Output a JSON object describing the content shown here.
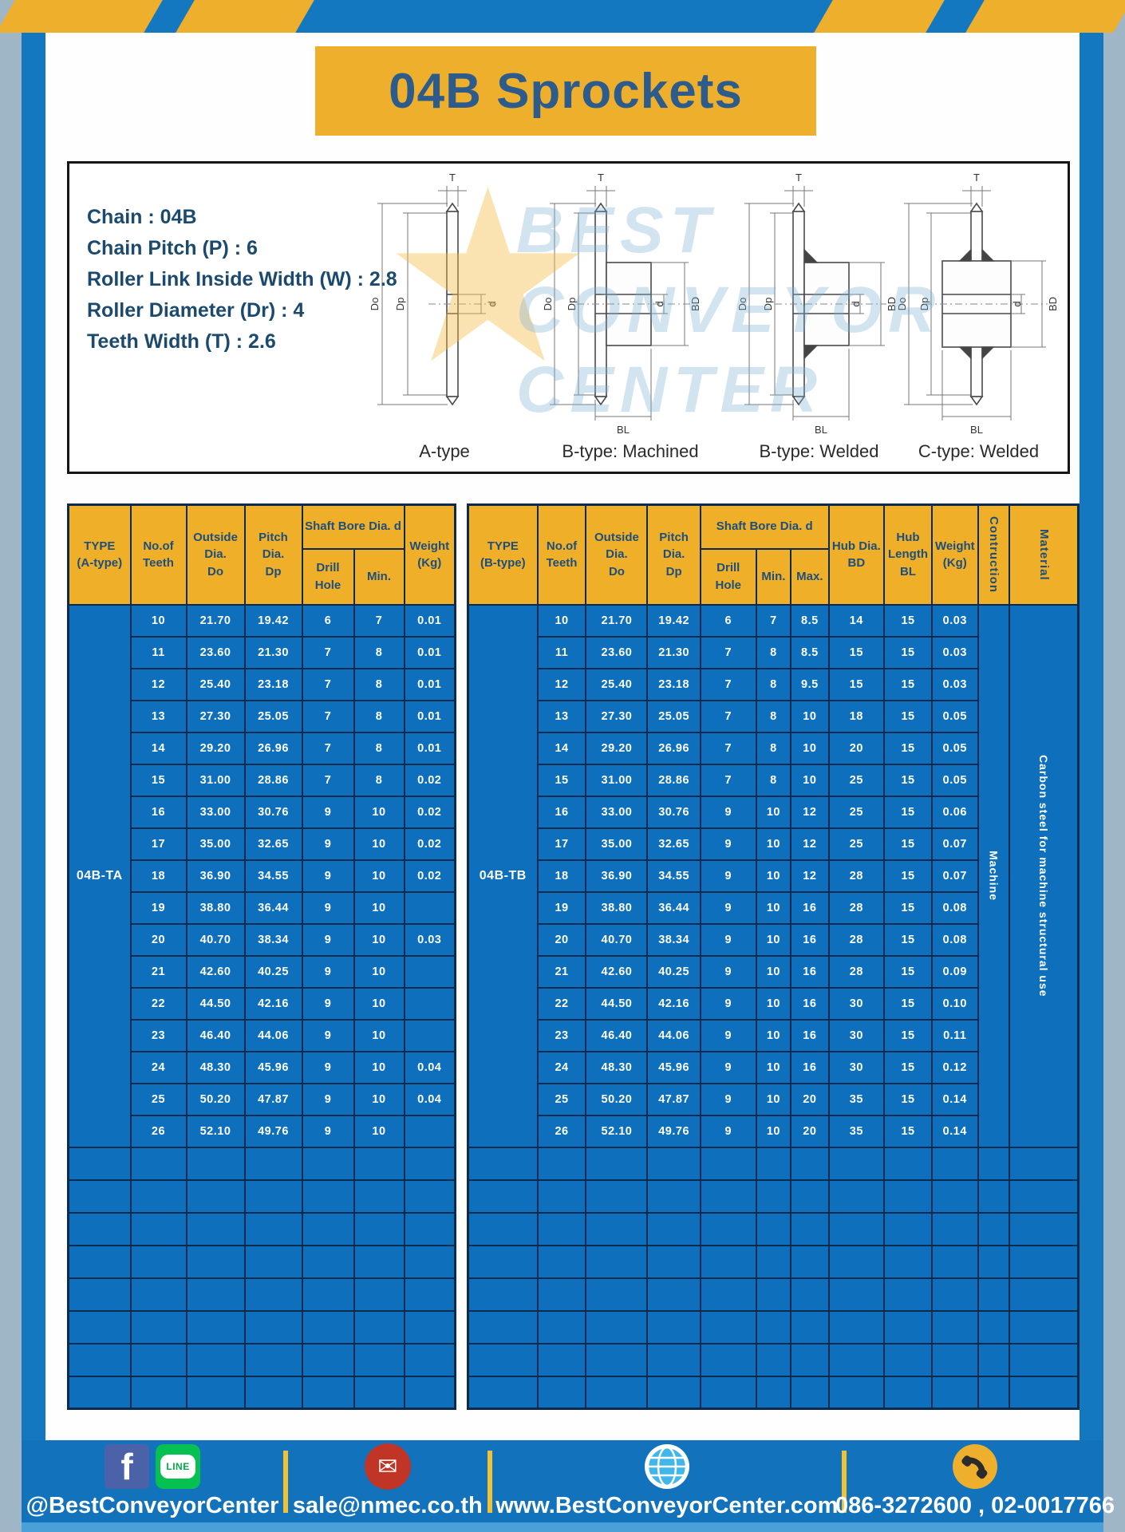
{
  "page": {
    "title": "04B Sprockets"
  },
  "specs": {
    "lines": [
      "Chain : 04B",
      "Chain Pitch (P) : 6",
      "Roller Link Inside Width (W) : 2.8",
      "Roller Diameter (Dr) : 4",
      "Teeth Width (T) : 2.6"
    ]
  },
  "drawings": {
    "labels": [
      "A-type",
      "B-type: Machined",
      "B-type: Welded",
      "C-type: Welded"
    ],
    "dims": {
      "t": "T",
      "do": "Do",
      "dp": "Dp",
      "d": "d",
      "bd": "BD",
      "bl": "BL"
    },
    "watermark": [
      "BEST",
      "CONVEYOR",
      "CENTER"
    ]
  },
  "tables": {
    "a": {
      "header": {
        "type": "TYPE\n(A-type)",
        "teeth": "No.of\nTeeth",
        "outside": "Outside\nDia.\nDo",
        "pitch": "Pitch Dia.\nDp",
        "shaft_bore": "Shaft Bore Dia. d",
        "drill": "Drill Hole",
        "min": "Min.",
        "weight": "Weight\n(Kg)"
      },
      "type_value": "04B-TA",
      "rows": [
        [
          "10",
          "21.70",
          "19.42",
          "6",
          "7",
          "0.01"
        ],
        [
          "11",
          "23.60",
          "21.30",
          "7",
          "8",
          "0.01"
        ],
        [
          "12",
          "25.40",
          "23.18",
          "7",
          "8",
          "0.01"
        ],
        [
          "13",
          "27.30",
          "25.05",
          "7",
          "8",
          "0.01"
        ],
        [
          "14",
          "29.20",
          "26.96",
          "7",
          "8",
          "0.01"
        ],
        [
          "15",
          "31.00",
          "28.86",
          "7",
          "8",
          "0.02"
        ],
        [
          "16",
          "33.00",
          "30.76",
          "9",
          "10",
          "0.02"
        ],
        [
          "17",
          "35.00",
          "32.65",
          "9",
          "10",
          "0.02"
        ],
        [
          "18",
          "36.90",
          "34.55",
          "9",
          "10",
          "0.02"
        ],
        [
          "19",
          "38.80",
          "36.44",
          "9",
          "10",
          ""
        ],
        [
          "20",
          "40.70",
          "38.34",
          "9",
          "10",
          "0.03"
        ],
        [
          "21",
          "42.60",
          "40.25",
          "9",
          "10",
          ""
        ],
        [
          "22",
          "44.50",
          "42.16",
          "9",
          "10",
          ""
        ],
        [
          "23",
          "46.40",
          "44.06",
          "9",
          "10",
          ""
        ],
        [
          "24",
          "48.30",
          "45.96",
          "9",
          "10",
          "0.04"
        ],
        [
          "25",
          "50.20",
          "47.87",
          "9",
          "10",
          "0.04"
        ],
        [
          "26",
          "52.10",
          "49.76",
          "9",
          "10",
          ""
        ]
      ],
      "empty_rows": 8
    },
    "b": {
      "header": {
        "type": "TYPE\n(B-type)",
        "teeth": "No.of\nTeeth",
        "outside": "Outside\nDia.\nDo",
        "pitch": "Pitch Dia.\nDp",
        "shaft_bore": "Shaft Bore Dia. d",
        "drill": "Drill Hole",
        "min": "Min.",
        "max": "Max.",
        "hub_dia": "Hub Dia.\nBD",
        "hub_len": "Hub\nLength\nBL",
        "weight": "Weight\n(Kg)",
        "contruction": "Contruction",
        "material": "Material"
      },
      "type_value": "04B-TB",
      "contruction_value": "Machine",
      "material_value": "Carbon steel for machine structural use",
      "rows": [
        [
          "10",
          "21.70",
          "19.42",
          "6",
          "7",
          "8.5",
          "14",
          "15",
          "0.03"
        ],
        [
          "11",
          "23.60",
          "21.30",
          "7",
          "8",
          "8.5",
          "15",
          "15",
          "0.03"
        ],
        [
          "12",
          "25.40",
          "23.18",
          "7",
          "8",
          "9.5",
          "15",
          "15",
          "0.03"
        ],
        [
          "13",
          "27.30",
          "25.05",
          "7",
          "8",
          "10",
          "18",
          "15",
          "0.05"
        ],
        [
          "14",
          "29.20",
          "26.96",
          "7",
          "8",
          "10",
          "20",
          "15",
          "0.05"
        ],
        [
          "15",
          "31.00",
          "28.86",
          "7",
          "8",
          "10",
          "25",
          "15",
          "0.05"
        ],
        [
          "16",
          "33.00",
          "30.76",
          "9",
          "10",
          "12",
          "25",
          "15",
          "0.06"
        ],
        [
          "17",
          "35.00",
          "32.65",
          "9",
          "10",
          "12",
          "25",
          "15",
          "0.07"
        ],
        [
          "18",
          "36.90",
          "34.55",
          "9",
          "10",
          "12",
          "28",
          "15",
          "0.07"
        ],
        [
          "19",
          "38.80",
          "36.44",
          "9",
          "10",
          "16",
          "28",
          "15",
          "0.08"
        ],
        [
          "20",
          "40.70",
          "38.34",
          "9",
          "10",
          "16",
          "28",
          "15",
          "0.08"
        ],
        [
          "21",
          "42.60",
          "40.25",
          "9",
          "10",
          "16",
          "28",
          "15",
          "0.09"
        ],
        [
          "22",
          "44.50",
          "42.16",
          "9",
          "10",
          "16",
          "30",
          "15",
          "0.10"
        ],
        [
          "23",
          "46.40",
          "44.06",
          "9",
          "10",
          "16",
          "30",
          "15",
          "0.11"
        ],
        [
          "24",
          "48.30",
          "45.96",
          "9",
          "10",
          "16",
          "30",
          "15",
          "0.12"
        ],
        [
          "25",
          "50.20",
          "47.87",
          "9",
          "10",
          "20",
          "35",
          "15",
          "0.14"
        ],
        [
          "26",
          "52.10",
          "49.76",
          "9",
          "10",
          "20",
          "35",
          "15",
          "0.14"
        ]
      ],
      "empty_rows": 8
    }
  },
  "footer": {
    "facebook_label": "f",
    "line_label": "LINE",
    "handle": "@BestConveyorCenter",
    "email": "sale@nmec.co.th",
    "website": "www.BestConveyorCenter.com",
    "phone": "086-3272600 , 02-0017766",
    "mail_glyph": "✉"
  },
  "colors": {
    "brand_blue": "#1478c0",
    "table_blue": "#0e70bc",
    "navy_border": "#0a2a4e",
    "header_yellow": "#eeb02c",
    "footer_blue": "#1272bc",
    "line_green": "#06c152",
    "facebook_blue": "#4b61a8",
    "mail_red": "#c13527",
    "globe_blue": "#41b6e8",
    "phone_yellow": "#eeb02c"
  }
}
